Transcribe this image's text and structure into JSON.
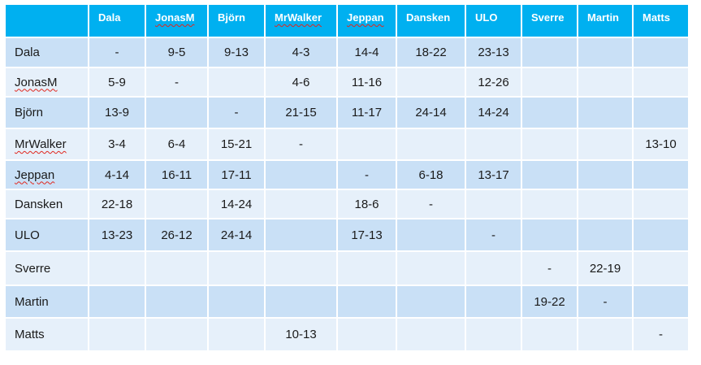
{
  "table": {
    "columns": [
      "Dala",
      "JonasM",
      "Björn",
      "MrWalker",
      "Jeppan",
      "Dansken",
      "ULO",
      "Sverre",
      "Martin",
      "Matts"
    ],
    "spellcheck_marked": [
      "JonasM",
      "MrWalker",
      "Jeppan"
    ],
    "colors": {
      "header_bg": "#00b0f0",
      "header_text": "#ffffff",
      "row_dark": "#c9e0f6",
      "row_light": "#e6f0fa",
      "spell_underline": "#e0271e"
    },
    "rows": [
      {
        "label": "Dala",
        "cells": [
          "-",
          "9-5",
          "9-13",
          "4-3",
          "14-4",
          "18-22",
          "23-13",
          "",
          "",
          ""
        ]
      },
      {
        "label": "JonasM",
        "cells": [
          "5-9",
          "-",
          "",
          "4-6",
          "11-16",
          "",
          "12-26",
          "",
          "",
          ""
        ]
      },
      {
        "label": "Björn",
        "cells": [
          "13-9",
          "",
          "-",
          "21-15",
          "11-17",
          "24-14",
          "14-24",
          "",
          "",
          ""
        ]
      },
      {
        "label": "MrWalker",
        "cells": [
          "3-4",
          "6-4",
          "15-21",
          "-",
          "",
          "",
          "",
          "",
          "",
          "13-10"
        ]
      },
      {
        "label": "Jeppan",
        "cells": [
          "4-14",
          "16-11",
          "17-11",
          "",
          "-",
          "6-18",
          "13-17",
          "",
          "",
          ""
        ]
      },
      {
        "label": "Dansken",
        "cells": [
          "22-18",
          "",
          "14-24",
          "",
          "18-6",
          "-",
          "",
          "",
          "",
          ""
        ]
      },
      {
        "label": "ULO",
        "cells": [
          "13-23",
          "26-12",
          "24-14",
          "",
          "17-13",
          "",
          "-",
          "",
          "",
          ""
        ]
      },
      {
        "label": "Sverre",
        "cells": [
          "",
          "",
          "",
          "",
          "",
          "",
          "",
          "-",
          "22-19",
          ""
        ]
      },
      {
        "label": "Martin",
        "cells": [
          "",
          "",
          "",
          "",
          "",
          "",
          "",
          "19-22",
          "-",
          ""
        ]
      },
      {
        "label": "Matts",
        "cells": [
          "",
          "",
          "",
          "10-13",
          "",
          "",
          "",
          "",
          "",
          "-"
        ]
      }
    ]
  }
}
